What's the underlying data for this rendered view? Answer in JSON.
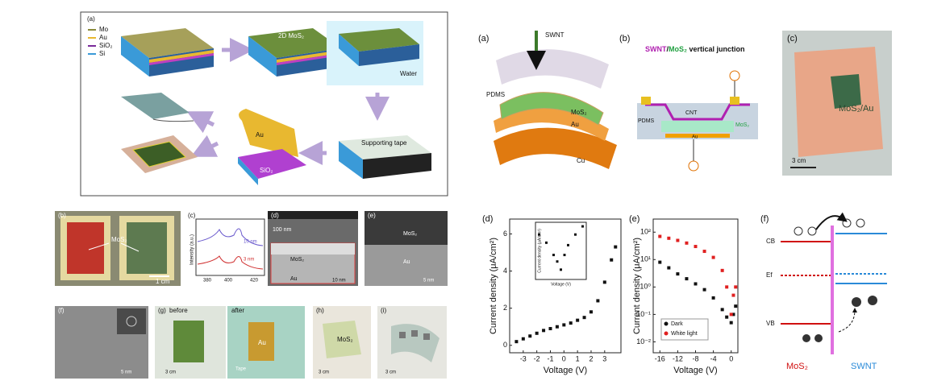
{
  "figure_left": {
    "a": {
      "label": "(a)",
      "legend": [
        "Mo",
        "Au",
        "SiO₂",
        "Si"
      ],
      "texts": [
        "2D MoS₂",
        "Water",
        "Supporting tape",
        "Au",
        "SiO₂"
      ]
    },
    "b": {
      "label": "(b)",
      "texts": [
        "MoS₂",
        "1 cm"
      ]
    },
    "c": {
      "label": "(c)",
      "y_label": "Intensity (a.u.)",
      "x_ticks": [
        "380",
        "400",
        "420"
      ],
      "curves": [
        "10 nm",
        "3 nm"
      ]
    },
    "d": {
      "label": "(d)",
      "texts": [
        "100 nm",
        "MoS₂",
        "Au",
        "10 nm"
      ]
    },
    "e": {
      "label": "(e)",
      "texts": [
        "MoS₂",
        "Au",
        "5 nm"
      ]
    },
    "f": {
      "label": "(f)",
      "texts": [
        "5 nm"
      ]
    },
    "g": {
      "label": "(g)",
      "texts": [
        "before",
        "after",
        "3 cm",
        "Au",
        "Tape"
      ]
    },
    "h": {
      "label": "(h)",
      "texts": [
        "MoS₂",
        "3 cm"
      ]
    },
    "i": {
      "label": "(i)",
      "texts": [
        "3 cm"
      ]
    }
  },
  "figure_right": {
    "a": {
      "label": "(a)",
      "texts": [
        "SWNT",
        "PDMS",
        "MoS₂",
        "Au",
        "Cu"
      ]
    },
    "b": {
      "label": "(b)",
      "title_parts": [
        "SWNT",
        "/",
        "MoS₂",
        " vertical junction"
      ],
      "texts": [
        "CNT",
        "PDMS",
        "MoS₂",
        "Au"
      ]
    },
    "c": {
      "label": "(c)",
      "texts": [
        "MoS₂/Au",
        "3 cm"
      ]
    },
    "d": {
      "label": "(d)",
      "chart": {
        "type": "scatter",
        "x_label": "Voltage (V)",
        "y_label": "Current density (μA/cm²)",
        "x": [
          -3.5,
          -3,
          -2.5,
          -2,
          -1.5,
          -1,
          -0.5,
          0,
          0.5,
          1,
          1.5,
          2,
          2.5,
          3,
          3.5,
          3.8
        ],
        "values": [
          0.2,
          0.35,
          0.5,
          0.65,
          0.8,
          0.9,
          1.0,
          1.1,
          1.2,
          1.35,
          1.5,
          1.8,
          2.4,
          3.4,
          4.6,
          5.3
        ],
        "color": "#111111",
        "xlim": [
          -4,
          4.2
        ],
        "ylim": [
          -0.4,
          6.8
        ],
        "xticks": [
          -3,
          -2,
          -1,
          0,
          1,
          2,
          3
        ],
        "yticks": [
          0,
          2,
          4,
          6
        ],
        "inset": {
          "x_label": "Voltage (V)",
          "y_label": "Current density (μA/cm²)",
          "x": [
            -3,
            -2,
            -1,
            -0.5,
            0,
            0.5,
            1,
            2,
            3
          ],
          "values": [
            5.5,
            4.5,
            3,
            2.2,
            1.2,
            3,
            4.2,
            5.5,
            6.5
          ],
          "xlim": [
            -3.5,
            3.5
          ],
          "ylim": [
            0,
            7
          ]
        }
      }
    },
    "e": {
      "label": "(e)",
      "chart": {
        "type": "scatter",
        "x_label": "Voltage (V)",
        "y_label": "Current density (μA/cm²)",
        "log_y": true,
        "x": [
          -16,
          -14,
          -12,
          -10,
          -8,
          -6,
          -4,
          -2,
          -1,
          0,
          0.5,
          1
        ],
        "series": [
          {
            "name": "Dark",
            "color": "#111111",
            "values": [
              8,
              5,
              3,
              2,
              1.3,
              0.8,
              0.4,
              0.15,
              0.08,
              0.05,
              0.1,
              0.2
            ]
          },
          {
            "name": "White light",
            "color": "#e02020",
            "values": [
              70,
              60,
              50,
              40,
              30,
              20,
              12,
              4,
              1,
              0.1,
              0.5,
              1
            ]
          }
        ],
        "xlim": [
          -17.5,
          1.5
        ],
        "ylim": [
          0.004,
          300
        ],
        "xticks": [
          -16,
          -12,
          -8,
          -4,
          0
        ],
        "yticks": [
          {
            "value": 100,
            "label": "10²"
          },
          {
            "value": 10,
            "label": "10¹"
          },
          {
            "value": 1,
            "label": "10⁰"
          },
          {
            "value": 0.1,
            "label": "10⁻¹"
          },
          {
            "value": 0.01,
            "label": "10⁻²"
          }
        ],
        "legend": "lower left"
      }
    },
    "f": {
      "label": "(f)",
      "texts": [
        "CB",
        "Ef",
        "VB",
        "MoS₂",
        "SWNT"
      ]
    }
  }
}
